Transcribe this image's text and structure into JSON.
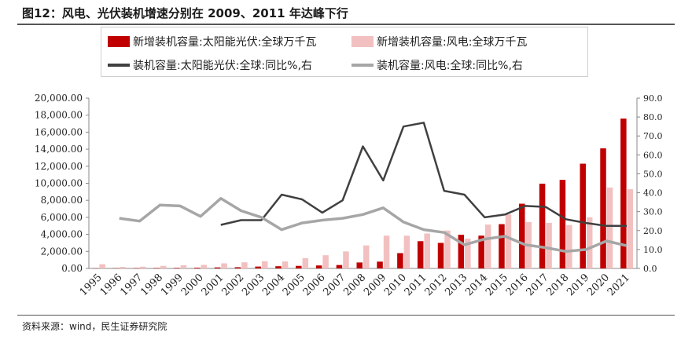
{
  "title": "图12：风电、光伏装机增速分别在 2009、2011 年达峰下行",
  "source": "资料来源：wind，民生证券研究院",
  "colors": {
    "solar_bar": "#c00000",
    "wind_bar": "#f2c0c0",
    "solar_line": "#404040",
    "wind_line": "#a6a6a6"
  },
  "legend": {
    "solar_bar": "新增装机容量:太阳能光伏:全球万千瓦",
    "wind_bar": "新增装机容量:风电:全球万千瓦",
    "solar_line": "装机容量:太阳能光伏:全球:同比%,右",
    "wind_line": "装机容量:风电:全球:同比%,右"
  },
  "chart_data": {
    "type": "bar+line",
    "categories": [
      "1995",
      "1996",
      "1997",
      "1998",
      "1999",
      "2000",
      "2001",
      "2002",
      "2003",
      "2004",
      "2005",
      "2006",
      "2007",
      "2008",
      "2009",
      "2010",
      "2011",
      "2012",
      "2013",
      "2014",
      "2015",
      "2016",
      "2017",
      "2018",
      "2019",
      "2020",
      "2021"
    ],
    "left_axis": {
      "ylim": [
        0,
        20000
      ],
      "ticks": [
        "0.00",
        "2,000.00",
        "4,000.00",
        "6,000.00",
        "8,000.00",
        "10,000.00",
        "12,000.00",
        "14,000.00",
        "16,000.00",
        "18,000.00",
        "20,000.00"
      ]
    },
    "right_axis": {
      "ylim": [
        0,
        90
      ],
      "ticks": [
        "0.0",
        "10.0",
        "20.0",
        "30.0",
        "40.0",
        "50.0",
        "60.0",
        "70.0",
        "80.0",
        "90.0"
      ]
    },
    "bar_series": [
      {
        "key": "solar_bar",
        "values": [
          20,
          30,
          40,
          50,
          60,
          80,
          120,
          140,
          220,
          260,
          300,
          350,
          400,
          700,
          800,
          1800,
          3200,
          3000,
          3950,
          3850,
          5200,
          7600,
          9950,
          10400,
          12300,
          14100,
          17600
        ]
      },
      {
        "key": "wind_bar",
        "values": [
          500,
          180,
          210,
          300,
          380,
          420,
          600,
          720,
          850,
          820,
          1200,
          1550,
          2000,
          2700,
          3850,
          3850,
          4100,
          4450,
          3500,
          5150,
          6350,
          5450,
          5350,
          5100,
          6000,
          9500,
          9300
        ]
      }
    ],
    "line_series": [
      {
        "key": "solar_line",
        "values": [
          null,
          null,
          null,
          null,
          null,
          null,
          23.0,
          25.5,
          25.5,
          39.0,
          36.5,
          29.5,
          36.0,
          64.5,
          46.5,
          75.0,
          77.0,
          41.0,
          39.0,
          27.0,
          28.5,
          33.0,
          32.5,
          26.0,
          24.0,
          22.5,
          22.5
        ]
      },
      {
        "key": "wind_line",
        "values": [
          null,
          26.5,
          25.0,
          33.5,
          33.0,
          27.5,
          37.0,
          30.5,
          27.0,
          20.5,
          24.0,
          25.5,
          26.5,
          28.5,
          32.0,
          24.5,
          20.5,
          19.0,
          12.5,
          15.5,
          17.0,
          12.5,
          11.0,
          9.0,
          10.0,
          14.5,
          12.0
        ]
      }
    ]
  }
}
